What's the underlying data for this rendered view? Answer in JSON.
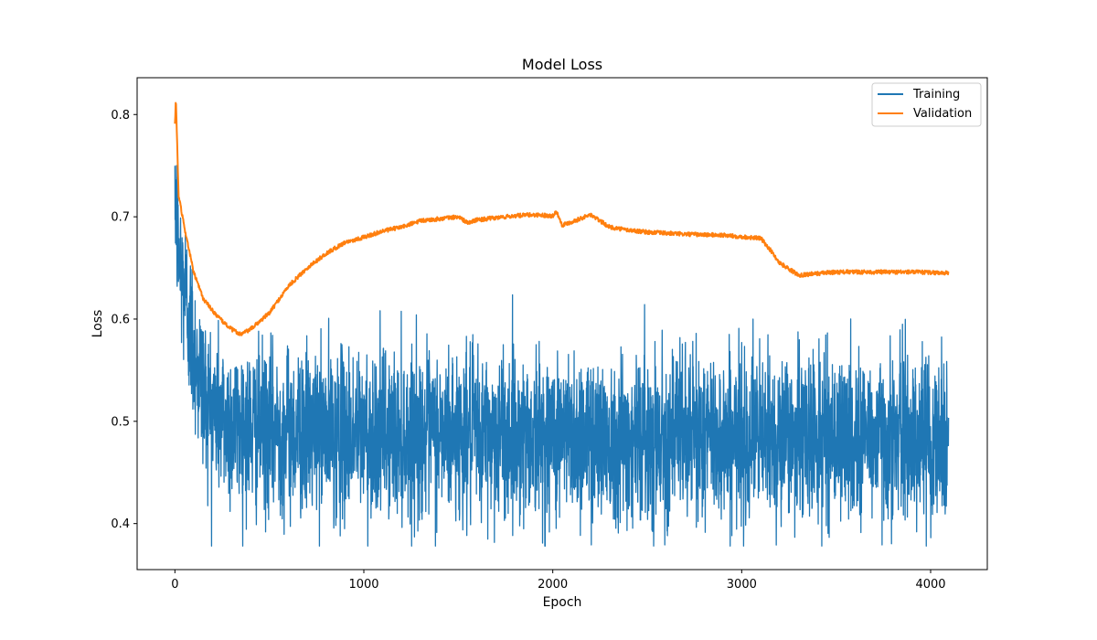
{
  "chart_data": {
    "type": "line",
    "title": "Model Loss",
    "xlabel": "Epoch",
    "ylabel": "Loss",
    "xlim": [
      -200,
      4300
    ],
    "ylim": [
      0.355,
      0.836
    ],
    "xticks": [
      0,
      1000,
      2000,
      3000,
      4000
    ],
    "yticks": [
      0.4,
      0.5,
      0.6,
      0.7,
      0.8
    ],
    "xtick_labels": [
      "0",
      "1000",
      "2000",
      "3000",
      "4000"
    ],
    "ytick_labels": [
      "0.4",
      "0.5",
      "0.6",
      "0.7",
      "0.8"
    ],
    "grid": false,
    "legend_position": "top-right",
    "epochs": 4096,
    "series": [
      {
        "name": "Training",
        "color": "#1f77b4",
        "style": "noisy",
        "x": [
          0,
          20,
          50,
          100,
          150,
          200,
          300,
          400,
          600,
          1000,
          1500,
          2000,
          2500,
          3000,
          3500,
          4096
        ],
        "y": [
          0.73,
          0.66,
          0.63,
          0.57,
          0.53,
          0.51,
          0.497,
          0.492,
          0.49,
          0.488,
          0.487,
          0.486,
          0.486,
          0.485,
          0.485,
          0.485
        ],
        "noise_amplitude": 0.04,
        "y_min": 0.378,
        "y_max": 0.75
      },
      {
        "name": "Validation",
        "color": "#ff7f0e",
        "style": "smooth",
        "x": [
          0,
          5,
          20,
          50,
          100,
          150,
          200,
          250,
          300,
          350,
          400,
          500,
          600,
          700,
          800,
          900,
          1000,
          1100,
          1200,
          1300,
          1400,
          1500,
          1550,
          1600,
          1700,
          1800,
          1900,
          2000,
          2020,
          2050,
          2100,
          2200,
          2300,
          2400,
          2500,
          2700,
          2900,
          3100,
          3150,
          3200,
          3300,
          3500,
          3700,
          3900,
          4096
        ],
        "y": [
          0.79,
          0.815,
          0.72,
          0.69,
          0.645,
          0.62,
          0.608,
          0.598,
          0.59,
          0.585,
          0.59,
          0.606,
          0.632,
          0.65,
          0.664,
          0.675,
          0.68,
          0.686,
          0.69,
          0.696,
          0.698,
          0.7,
          0.694,
          0.697,
          0.699,
          0.701,
          0.702,
          0.701,
          0.705,
          0.692,
          0.695,
          0.702,
          0.69,
          0.687,
          0.685,
          0.683,
          0.682,
          0.679,
          0.668,
          0.655,
          0.643,
          0.646,
          0.646,
          0.646,
          0.645
        ]
      }
    ]
  }
}
